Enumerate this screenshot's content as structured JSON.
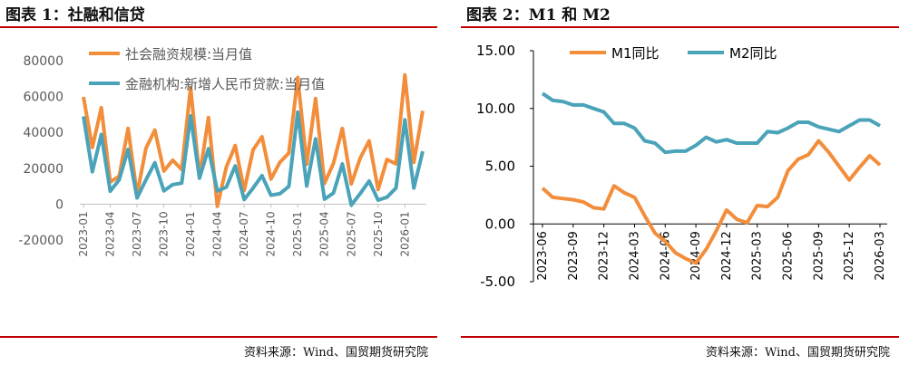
{
  "charts_meta": {
    "panel1_title": "图表 1：社融和信贷",
    "panel2_title": "图表 2：M1 和 M2",
    "source1": "资料来源：Wind、国贸期货研究院",
    "source2": "资料来源：Wind、国贸期货研究院"
  },
  "colors": {
    "orange": "#f28e3b",
    "blue": "#4aa3b8",
    "rule": "#c00000",
    "axis": "#595959"
  },
  "chart_data": [
    {
      "type": "line",
      "title": "图表 1：社融和信贷",
      "ylim": [
        -20000,
        80000
      ],
      "yticks": [
        -20000,
        0,
        20000,
        40000,
        60000,
        80000
      ],
      "x_start": "2023-01",
      "x_ticks": [
        "2023-01",
        "2023-04",
        "2023-07",
        "2023-10",
        "2024-01",
        "2024-04",
        "2024-07",
        "2024-10",
        "2025-01",
        "2025-04",
        "2025-07",
        "2025-10",
        "2026-01"
      ],
      "series": [
        {
          "name": "社会融资规模:当月值",
          "values": [
            59800,
            31600,
            53800,
            12300,
            15600,
            42200,
            5400,
            31200,
            41300,
            18500,
            24500,
            19300,
            65000,
            15100,
            48300,
            -1200,
            20700,
            32700,
            7700,
            30300,
            37600,
            14000,
            23300,
            28500,
            70600,
            22300,
            58900,
            11600,
            22800,
            42200,
            11300,
            25700,
            35300,
            8200,
            24900,
            22400,
            72000,
            23400,
            52000
          ]
        },
        {
          "name": "金融机构:新增人民币贷款:当月值",
          "values": [
            49000,
            18100,
            38900,
            7200,
            13600,
            30500,
            3500,
            13600,
            23100,
            7400,
            10900,
            11700,
            49200,
            14500,
            30900,
            7300,
            9500,
            21300,
            2600,
            9000,
            15900,
            5000,
            5800,
            9900,
            51300,
            10100,
            36400,
            2800,
            6200,
            22400,
            -500,
            5900,
            12900,
            2200,
            3900,
            9000,
            47000,
            9000,
            29500
          ]
        }
      ]
    },
    {
      "type": "line",
      "title": "图表 2：M1 和 M2",
      "ylim": [
        -5,
        15
      ],
      "yticks": [
        "-5.00",
        "0.00",
        "5.00",
        "10.00",
        "15.00"
      ],
      "x_start": "2023-06",
      "x_ticks": [
        "2023-06",
        "2023-09",
        "2023-12",
        "2024-03",
        "2024-06",
        "2024-09",
        "2024-12",
        "2025-03",
        "2025-06",
        "2025-09",
        "2025-12",
        "2026-03"
      ],
      "series": [
        {
          "name": "M1同比",
          "values": [
            3.1,
            2.3,
            2.2,
            2.1,
            1.9,
            1.4,
            1.3,
            3.3,
            2.7,
            2.3,
            0.7,
            -0.8,
            -1.5,
            -2.5,
            -3.0,
            -3.4,
            -2.2,
            -0.6,
            1.2,
            0.4,
            0.1,
            1.6,
            1.5,
            2.3,
            4.6,
            5.6,
            6.0,
            7.2,
            6.2,
            5.0,
            3.8,
            4.9,
            5.9,
            5.1
          ]
        },
        {
          "name": "M2同比",
          "values": [
            11.3,
            10.7,
            10.6,
            10.3,
            10.3,
            10.0,
            9.7,
            8.7,
            8.7,
            8.3,
            7.2,
            7.0,
            6.2,
            6.3,
            6.3,
            6.8,
            7.5,
            7.1,
            7.3,
            7.0,
            7.0,
            7.0,
            8.0,
            7.9,
            8.3,
            8.8,
            8.8,
            8.4,
            8.2,
            8.0,
            8.5,
            9.0,
            9.0,
            8.5
          ]
        }
      ]
    }
  ]
}
